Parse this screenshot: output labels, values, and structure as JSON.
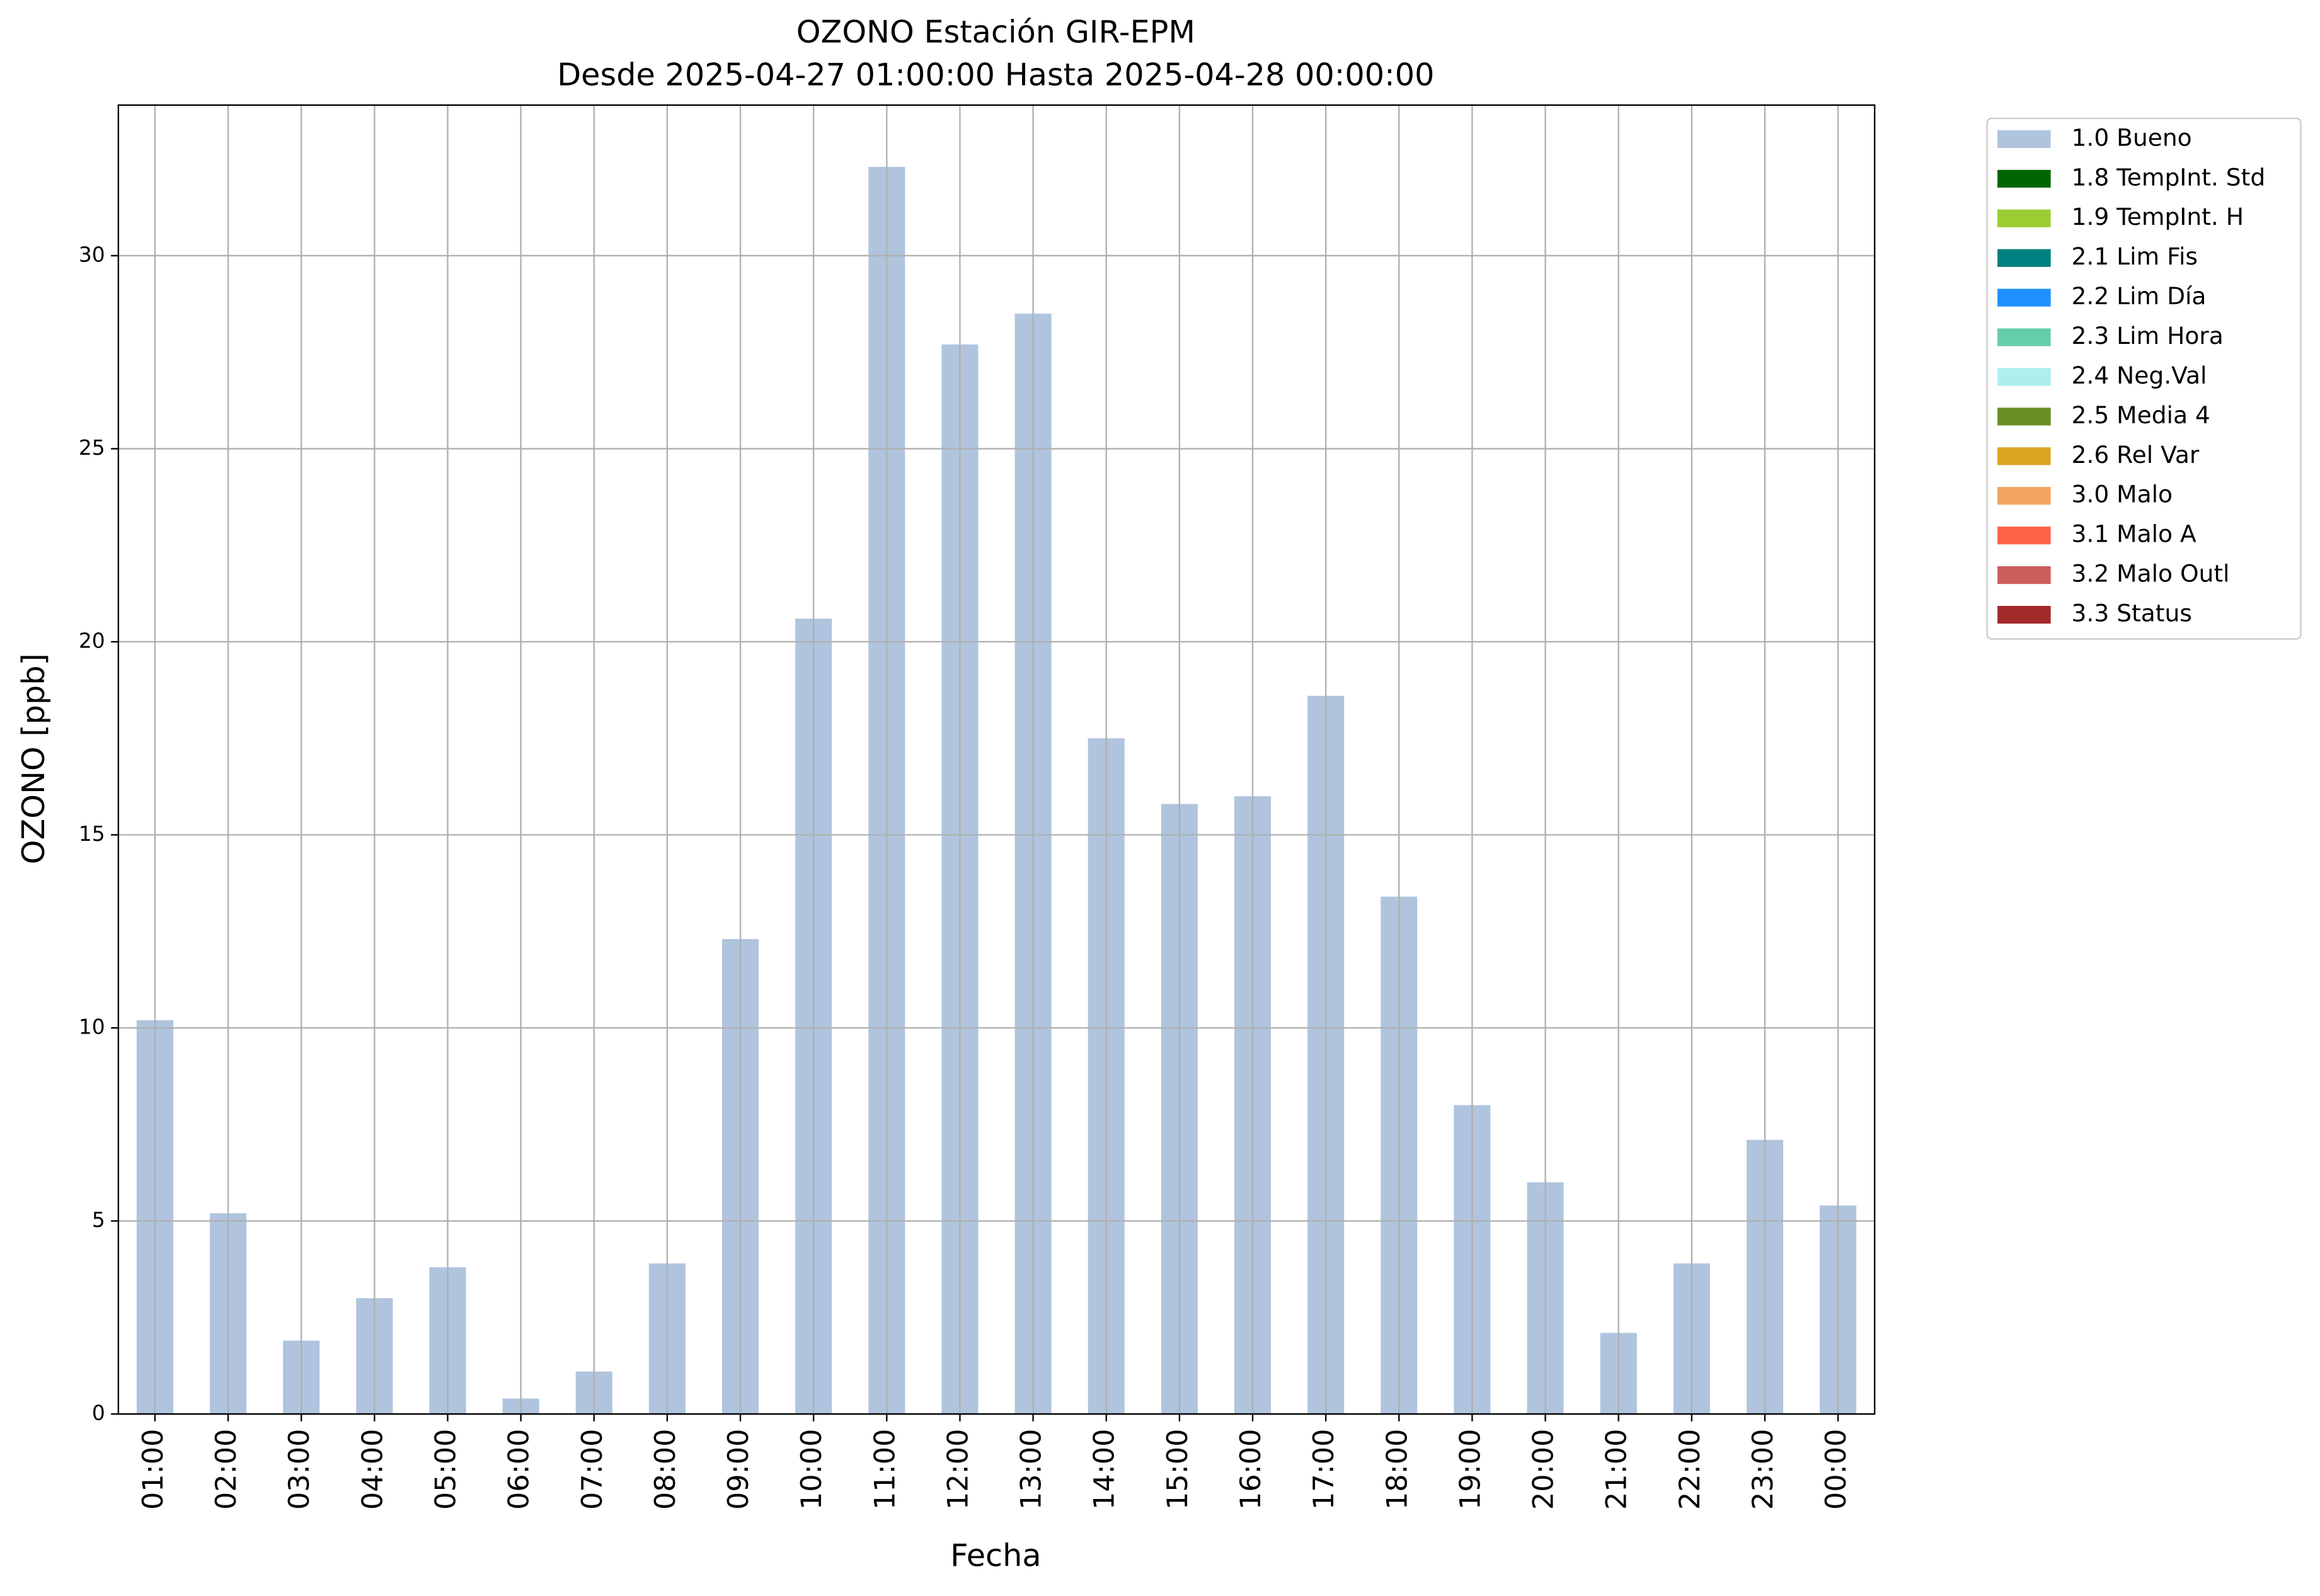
{
  "chart_data": {
    "type": "bar",
    "title": "OZONO Estación GIR-EPM",
    "subtitle": "Desde 2025-04-27 01:00:00 Hasta 2025-04-28 00:00:00",
    "x_label": "Fecha",
    "y_label": "OZONO [ppb]",
    "categories": [
      "01:00",
      "02:00",
      "03:00",
      "04:00",
      "05:00",
      "06:00",
      "07:00",
      "08:00",
      "09:00",
      "10:00",
      "11:00",
      "12:00",
      "13:00",
      "14:00",
      "15:00",
      "16:00",
      "17:00",
      "18:00",
      "19:00",
      "20:00",
      "21:00",
      "22:00",
      "23:00",
      "00:00"
    ],
    "series": [
      {
        "name": "1.0 Bueno",
        "color": "#b0c4de",
        "values": [
          10.2,
          5.2,
          1.9,
          3.0,
          3.8,
          0.4,
          1.1,
          3.9,
          12.3,
          20.6,
          32.3,
          27.7,
          28.5,
          17.5,
          15.8,
          16.0,
          18.6,
          13.4,
          8.0,
          6.0,
          2.1,
          3.9,
          7.1,
          5.4
        ]
      }
    ],
    "legend": [
      {
        "name": "1.0 Bueno",
        "color": "#b0c4de"
      },
      {
        "name": "1.8 TempInt. Std",
        "color": "#006400"
      },
      {
        "name": "1.9 TempInt. H",
        "color": "#9acd32"
      },
      {
        "name": "2.1 Lim Fis",
        "color": "#008080"
      },
      {
        "name": "2.2 Lim Día",
        "color": "#1e90ff"
      },
      {
        "name": "2.3 Lim Hora",
        "color": "#66cdaa"
      },
      {
        "name": "2.4 Neg.Val",
        "color": "#afeeee"
      },
      {
        "name": "2.5 Media 4",
        "color": "#6b8e23"
      },
      {
        "name": "2.6 Rel Var",
        "color": "#daa520"
      },
      {
        "name": "3.0 Malo",
        "color": "#f4a460"
      },
      {
        "name": "3.1 Malo A",
        "color": "#ff6347"
      },
      {
        "name": "3.2 Malo Outl",
        "color": "#cd5c5c"
      },
      {
        "name": "3.3 Status",
        "color": "#a52a2a"
      }
    ],
    "legend_position": "outside right",
    "ylim": [
      0,
      33.9
    ],
    "yticks": [
      0,
      5,
      10,
      15,
      20,
      25,
      30
    ],
    "grid": true
  }
}
